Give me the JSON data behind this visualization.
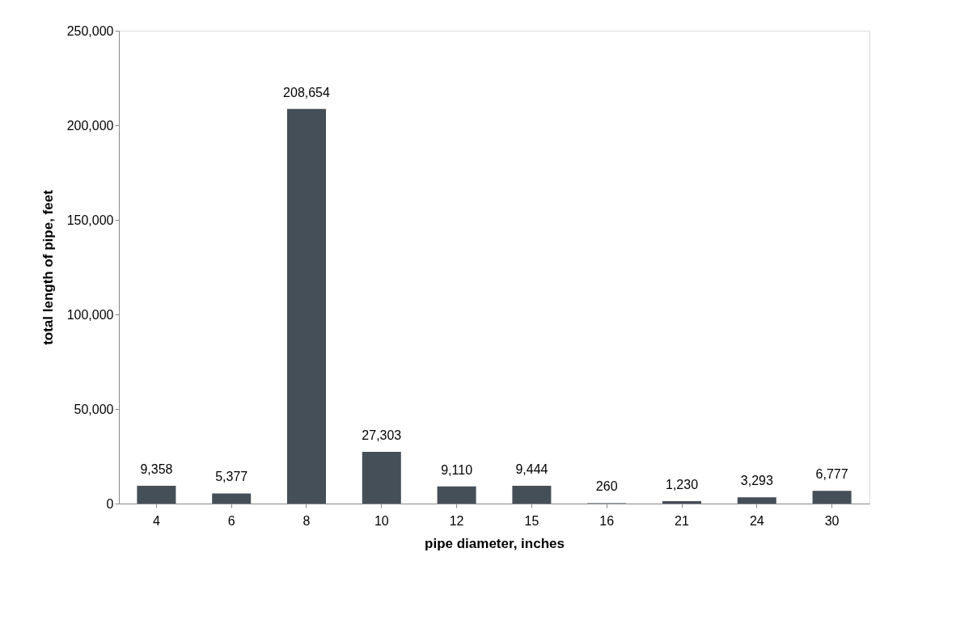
{
  "chart_data": {
    "type": "bar",
    "xlabel": "pipe diameter, inches",
    "ylabel": "total length of pipe, feet",
    "categories": [
      "4",
      "6",
      "8",
      "10",
      "12",
      "15",
      "16",
      "21",
      "24",
      "30"
    ],
    "values": [
      9358,
      5377,
      208654,
      27303,
      9110,
      9444,
      260,
      1230,
      3293,
      6777
    ],
    "value_labels": [
      "9,358",
      "5,377",
      "208,654",
      "27,303",
      "9,110",
      "9,444",
      "260",
      "1,230",
      "3,293",
      "6,777"
    ],
    "color": "#454f58",
    "ylim": [
      0,
      250000
    ],
    "yticks": [
      0,
      {
        "value": 50000,
        "label": "50,000"
      },
      {
        "value": 100000,
        "label": "100,000"
      },
      {
        "value": 150000,
        "label": "150,000"
      },
      {
        "value": 200000,
        "label": "200,000"
      },
      {
        "value": 250000,
        "label": "250,000"
      }
    ],
    "grid": false
  }
}
